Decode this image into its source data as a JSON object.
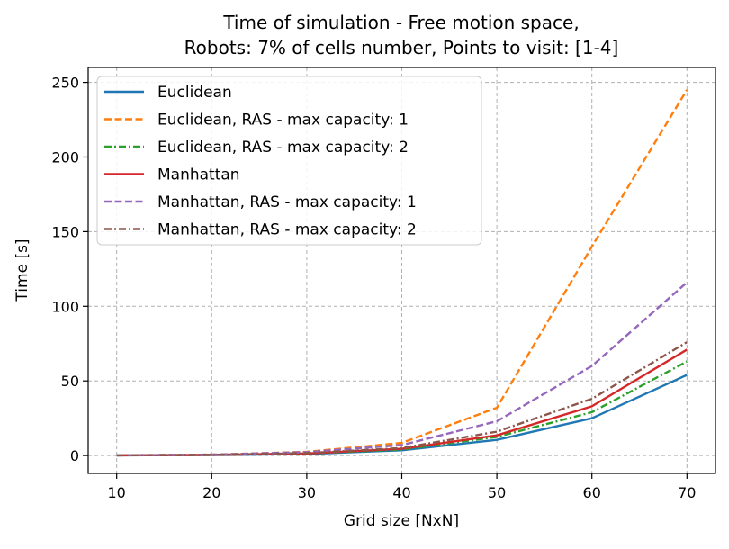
{
  "chart_data": {
    "type": "line",
    "title": [
      "Time of simulation - Free motion space,",
      "Robots: 7% of cells number, Points to visit: [1-4]"
    ],
    "xlabel": "Grid size [NxN]",
    "ylabel": "Time [s]",
    "x": [
      10,
      20,
      30,
      40,
      50,
      60,
      70
    ],
    "xlim": [
      7,
      73
    ],
    "ylim": [
      -12,
      260
    ],
    "xticks": [
      10,
      20,
      30,
      40,
      50,
      60,
      70
    ],
    "yticks": [
      0,
      50,
      100,
      150,
      200,
      250
    ],
    "grid": true,
    "legend_position": "upper-left",
    "series": [
      {
        "name": "Euclidean",
        "color": "#1f77b4",
        "dash": "solid",
        "values": [
          0.1,
          0.3,
          1.0,
          3.5,
          10.5,
          25,
          54
        ]
      },
      {
        "name": "Euclidean, RAS - max capacity: 1",
        "color": "#ff7f0e",
        "dash": "dashed",
        "values": [
          0.2,
          0.6,
          2.5,
          8.5,
          32,
          140,
          245
        ]
      },
      {
        "name": "Euclidean, RAS - max capacity: 2",
        "color": "#2ca02c",
        "dash": "dashdot",
        "values": [
          0.1,
          0.4,
          1.3,
          4.0,
          12.5,
          29,
          63
        ]
      },
      {
        "name": "Manhattan",
        "color": "#d62728",
        "dash": "solid",
        "values": [
          0.1,
          0.4,
          1.4,
          4.5,
          13.5,
          33,
          71
        ]
      },
      {
        "name": "Manhattan, RAS - max capacity: 1",
        "color": "#9467bd",
        "dash": "dashed",
        "values": [
          0.2,
          0.6,
          2.3,
          7.0,
          23,
          60,
          116
        ]
      },
      {
        "name": "Manhattan, RAS - max capacity: 2",
        "color": "#8c564b",
        "dash": "dashdot",
        "values": [
          0.1,
          0.5,
          1.6,
          5.0,
          16,
          38,
          76
        ]
      }
    ]
  }
}
